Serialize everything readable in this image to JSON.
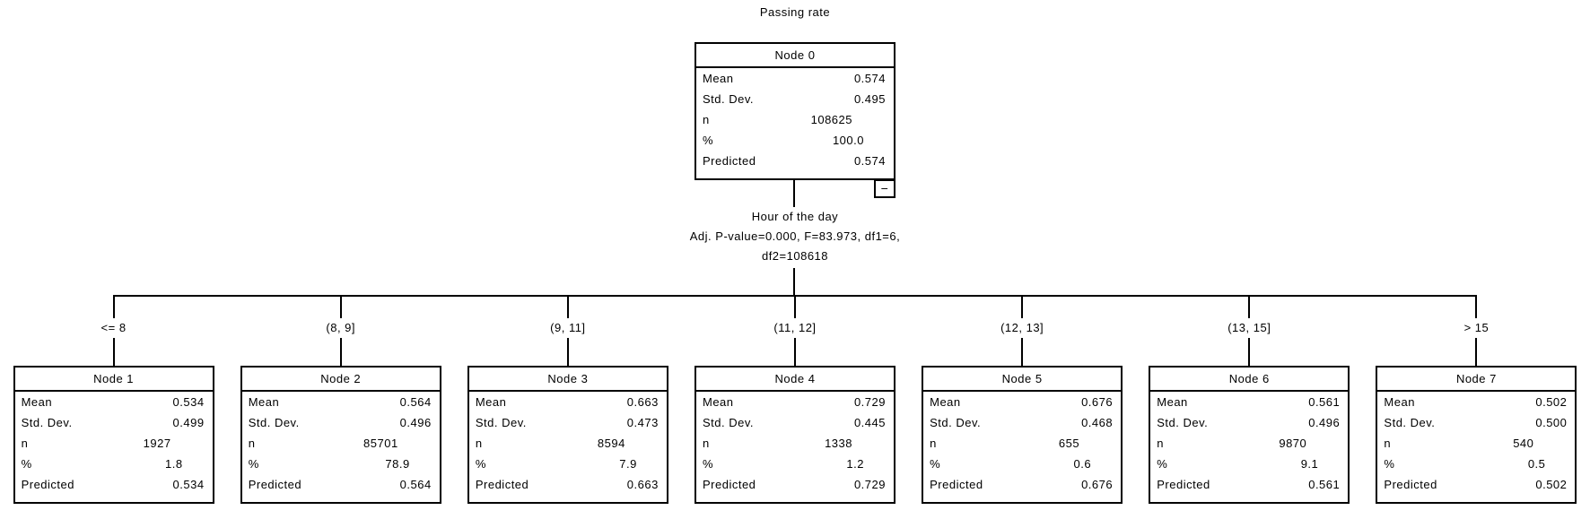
{
  "title": "Passing rate",
  "row_labels": {
    "mean": "Mean",
    "std": "Std. Dev.",
    "n": "n",
    "pct": "%",
    "pred": "Predicted"
  },
  "root": {
    "name": "Node 0",
    "mean": "0.574",
    "std": "0.495",
    "n": "108625",
    "pct": "100.0",
    "pred": "0.574",
    "collapse_label": "−"
  },
  "split": {
    "variable": "Hour of the day",
    "stats_line1": "Adj. P-value=0.000, F=83.973, df1=6,",
    "stats_line2": "df2=108618"
  },
  "children": [
    {
      "branch": "<= 8",
      "name": "Node 1",
      "mean": "0.534",
      "std": "0.499",
      "n": "1927",
      "pct": "1.8",
      "pred": "0.534"
    },
    {
      "branch": "(8, 9]",
      "name": "Node 2",
      "mean": "0.564",
      "std": "0.496",
      "n": "85701",
      "pct": "78.9",
      "pred": "0.564"
    },
    {
      "branch": "(9, 11]",
      "name": "Node 3",
      "mean": "0.663",
      "std": "0.473",
      "n": "8594",
      "pct": "7.9",
      "pred": "0.663"
    },
    {
      "branch": "(11, 12]",
      "name": "Node 4",
      "mean": "0.729",
      "std": "0.445",
      "n": "1338",
      "pct": "1.2",
      "pred": "0.729"
    },
    {
      "branch": "(12, 13]",
      "name": "Node 5",
      "mean": "0.676",
      "std": "0.468",
      "n": "655",
      "pct": "0.6",
      "pred": "0.676"
    },
    {
      "branch": "(13, 15]",
      "name": "Node 6",
      "mean": "0.561",
      "std": "0.496",
      "n": "9870",
      "pct": "9.1",
      "pred": "0.561"
    },
    {
      "branch": "> 15",
      "name": "Node 7",
      "mean": "0.502",
      "std": "0.500",
      "n": "540",
      "pct": "0.5",
      "pred": "0.502"
    }
  ]
}
